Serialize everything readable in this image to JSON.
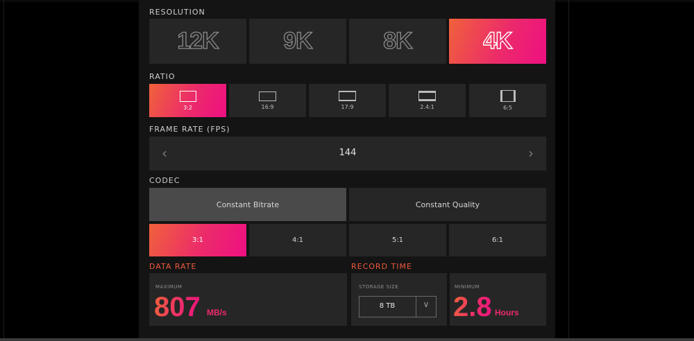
{
  "sections": {
    "resolution": "RESOLUTION",
    "ratio": "RATIO",
    "frame_rate": "FRAME RATE (FPS)",
    "codec": "CODEC",
    "data_rate": "DATA RATE",
    "record_time": "RECORD TIME"
  },
  "resolution": {
    "options": [
      "12K",
      "9K",
      "8K",
      "4K"
    ],
    "selected": "4K"
  },
  "ratio": {
    "options": [
      "3:2",
      "16:9",
      "17:9",
      "2.4:1",
      "6:5"
    ],
    "selected": "3:2"
  },
  "frame_rate": {
    "value": "144",
    "prev_icon": "chevron-left-icon",
    "next_icon": "chevron-right-icon"
  },
  "codec": {
    "modes": [
      "Constant Bitrate",
      "Constant Quality"
    ],
    "selected_mode": "Constant Bitrate",
    "compression": [
      "3:1",
      "4:1",
      "5:1",
      "6:1"
    ],
    "selected_compression": "3:1"
  },
  "data_rate": {
    "caption": "MAXIMUM",
    "value": "807",
    "unit": "MB/s"
  },
  "record_time": {
    "storage_caption": "STORAGE SIZE",
    "storage_value": "8 TB",
    "minimum_caption": "MINIMUM",
    "value": "2.8",
    "unit": "Hours"
  },
  "colors": {
    "accent_start": "#f0613b",
    "accent_end": "#ee0f82",
    "tile_bg": "#262626",
    "page_bg": "#141414"
  }
}
